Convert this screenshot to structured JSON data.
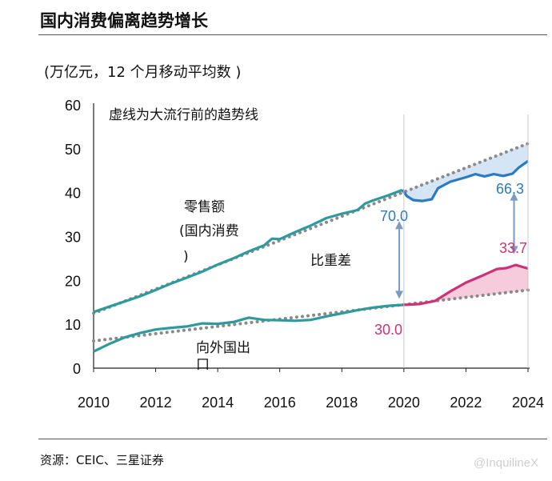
{
  "header": {
    "title": "国内消费偏离趋势增长",
    "unit": "(万亿元，12 个月移动平均数 )"
  },
  "footer": {
    "source": "资源：CEIC、三星证券",
    "watermark": "@InquilineX"
  },
  "colors": {
    "retail": "#2a7bbf",
    "retail_pre2020": "#2f9a9e",
    "exports": "#cc3377",
    "exports_pre2020": "#2f9a9e",
    "trend": "#8a8a8a",
    "gap_blue_fill": "#cfe0f3",
    "gap_pink_fill": "#f4c2d6",
    "arrow": "#7a9cc4"
  },
  "chart_data": {
    "type": "line",
    "xlim": [
      2010,
      2024
    ],
    "ylim": [
      0,
      60
    ],
    "x_ticks": [
      "2010",
      "2012",
      "2014",
      "2016",
      "2018",
      "2020",
      "2022",
      "2024"
    ],
    "y_ticks": [
      "0",
      "10",
      "20",
      "30",
      "40",
      "50",
      "60"
    ],
    "grid": false,
    "series": [
      {
        "key": "retail",
        "name": "零售额(国内消费)",
        "points": [
          [
            2010,
            12.8
          ],
          [
            2010.5,
            14.0
          ],
          [
            2011,
            15.2
          ],
          [
            2011.5,
            16.4
          ],
          [
            2012,
            17.8
          ],
          [
            2012.5,
            19.3
          ],
          [
            2013,
            20.6
          ],
          [
            2013.5,
            22.0
          ],
          [
            2014,
            23.6
          ],
          [
            2014.5,
            25.0
          ],
          [
            2015,
            26.6
          ],
          [
            2015.5,
            28.0
          ],
          [
            2015.75,
            29.5
          ],
          [
            2016,
            29.4
          ],
          [
            2016.5,
            31.0
          ],
          [
            2017,
            32.5
          ],
          [
            2017.5,
            34.2
          ],
          [
            2018,
            35.2
          ],
          [
            2018.5,
            36.0
          ],
          [
            2018.75,
            37.5
          ],
          [
            2019,
            38.2
          ],
          [
            2019.5,
            39.4
          ],
          [
            2019.95,
            40.6
          ],
          [
            2020.1,
            39.2
          ],
          [
            2020.3,
            38.3
          ],
          [
            2020.6,
            38.1
          ],
          [
            2020.9,
            38.5
          ],
          [
            2021.1,
            41.0
          ],
          [
            2021.5,
            42.5
          ],
          [
            2022,
            43.5
          ],
          [
            2022.3,
            44.2
          ],
          [
            2022.6,
            43.7
          ],
          [
            2022.9,
            44.2
          ],
          [
            2023.2,
            43.8
          ],
          [
            2023.5,
            44.3
          ],
          [
            2023.7,
            45.7
          ],
          [
            2024,
            47.2
          ]
        ]
      },
      {
        "key": "exports",
        "name": "向外国出口",
        "points": [
          [
            2010,
            3.8
          ],
          [
            2010.5,
            5.5
          ],
          [
            2011,
            7.0
          ],
          [
            2011.5,
            8.0
          ],
          [
            2012,
            8.8
          ],
          [
            2012.5,
            9.2
          ],
          [
            2013,
            9.5
          ],
          [
            2013.5,
            10.2
          ],
          [
            2014,
            10.1
          ],
          [
            2014.5,
            10.5
          ],
          [
            2015,
            11.5
          ],
          [
            2015.5,
            11.0
          ],
          [
            2016,
            10.9
          ],
          [
            2016.5,
            10.8
          ],
          [
            2017,
            11.0
          ],
          [
            2017.5,
            11.8
          ],
          [
            2018,
            12.5
          ],
          [
            2018.5,
            13.2
          ],
          [
            2019,
            13.8
          ],
          [
            2019.5,
            14.2
          ],
          [
            2019.95,
            14.4
          ],
          [
            2020.5,
            14.6
          ],
          [
            2021,
            15.3
          ],
          [
            2021.5,
            17.5
          ],
          [
            2022,
            19.5
          ],
          [
            2022.5,
            21.0
          ],
          [
            2023,
            22.6
          ],
          [
            2023.3,
            22.8
          ],
          [
            2023.6,
            23.5
          ],
          [
            2024,
            22.7
          ]
        ]
      },
      {
        "key": "retail_trend",
        "name": "趋势线",
        "points": [
          [
            2010,
            12.5
          ],
          [
            2024,
            51.2
          ]
        ]
      },
      {
        "key": "exports_trend",
        "name": "趋势线",
        "points": [
          [
            2010,
            6.2
          ],
          [
            2024,
            17.8
          ]
        ]
      }
    ],
    "annotations": {
      "trend_note": "虚线为大流行前的趋势线",
      "retail_label_line1": "零售额",
      "retail_label_line2": "(国内消费",
      "retail_label_line3": ")",
      "exports_label_line1": "向外国出",
      "exports_label_line2": "口",
      "ratio_label": "比重差",
      "v2020_retail": "70.0",
      "v2020_exports": "30.0",
      "v2024_retail": "66.3",
      "v2024_exports": "33.7"
    }
  }
}
